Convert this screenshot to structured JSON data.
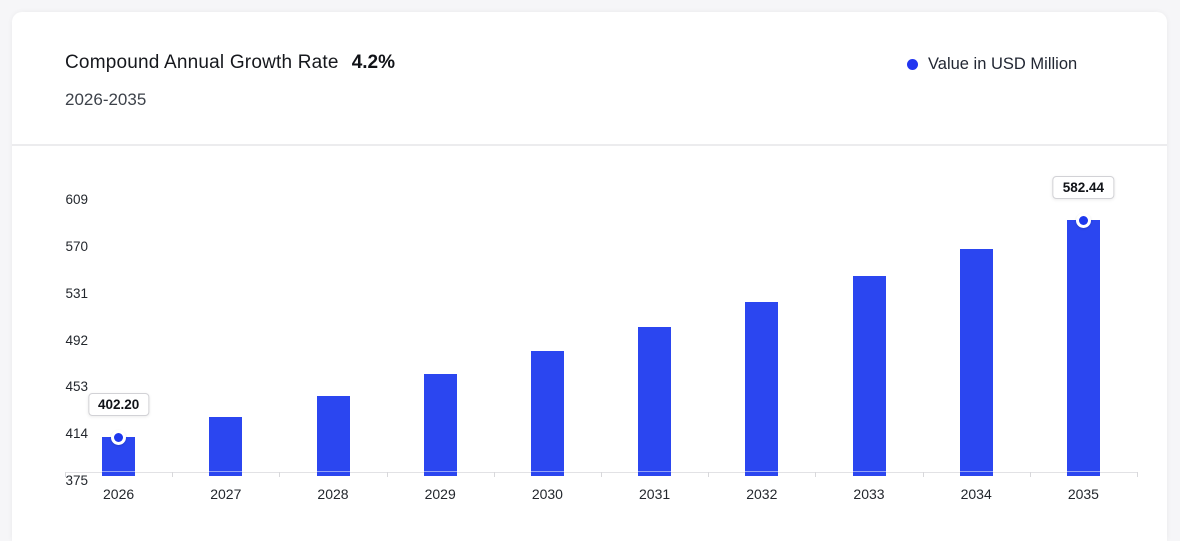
{
  "header": {
    "title": "Compound Annual Growth Rate",
    "cagr_value": "4.2%",
    "subtitle": "2026-2035",
    "legend": {
      "label": "Value in USD Million",
      "dot_color": "#2235f0"
    }
  },
  "chart_data": {
    "type": "bar",
    "title": "Compound Annual Growth Rate 4.2%",
    "subtitle": "2026-2035",
    "categories": [
      "2026",
      "2027",
      "2028",
      "2029",
      "2030",
      "2031",
      "2032",
      "2033",
      "2034",
      "2035"
    ],
    "series": [
      {
        "name": "Value in USD Million",
        "values": [
          402.2,
          419.09,
          436.69,
          455.03,
          474.14,
          494.06,
          514.81,
          536.43,
          558.96,
          582.44
        ]
      }
    ],
    "y_ticks": [
      375,
      414,
      453,
      492,
      531,
      570,
      609
    ],
    "ylim": [
      375,
      609
    ],
    "xlabel": "",
    "ylabel": "",
    "grid": false,
    "legend_position": "top-right",
    "bar_color": "#2b46f0",
    "marker_color": "#1d38ee",
    "annotations": [
      {
        "category": "2026",
        "label": "402.20"
      },
      {
        "category": "2035",
        "label": "582.44"
      }
    ]
  }
}
